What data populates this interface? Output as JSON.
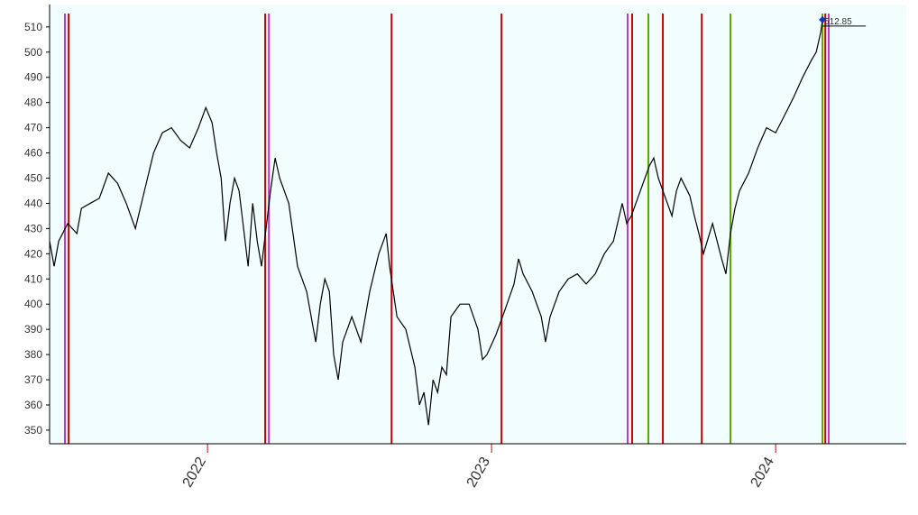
{
  "chart_data": {
    "type": "line",
    "xlim": [
      2021.444,
      2024.46
    ],
    "ylim": [
      344.6,
      518.9
    ],
    "xticks": [
      2022,
      2023,
      2024
    ],
    "yticks": [
      350,
      360,
      370,
      380,
      390,
      400,
      410,
      420,
      430,
      440,
      450,
      460,
      470,
      480,
      490,
      500,
      510
    ],
    "background": "#f2fdfd",
    "series": [
      {
        "color": "#000000",
        "x": [
          2021.444,
          2021.46,
          2021.476,
          2021.508,
          2021.54,
          2021.556,
          2021.587,
          2021.619,
          2021.651,
          2021.683,
          2021.714,
          2021.746,
          2021.778,
          2021.81,
          2021.841,
          2021.873,
          2021.905,
          2021.937,
          2021.968,
          2021.994,
          2022.016,
          2022.032,
          2022.048,
          2022.063,
          2022.079,
          2022.095,
          2022.111,
          2022.127,
          2022.143,
          2022.159,
          2022.175,
          2022.19,
          2022.206,
          2022.222,
          2022.238,
          2022.254,
          2022.286,
          2022.317,
          2022.349,
          2022.381,
          2022.397,
          2022.413,
          2022.429,
          2022.444,
          2022.46,
          2022.476,
          2022.508,
          2022.54,
          2022.571,
          2022.603,
          2022.629,
          2022.641,
          2022.667,
          2022.698,
          2022.73,
          2022.746,
          2022.762,
          2022.778,
          2022.794,
          2022.81,
          2022.825,
          2022.841,
          2022.857,
          2022.889,
          2022.921,
          2022.952,
          2022.968,
          2022.984,
          2023.016,
          2023.048,
          2023.079,
          2023.095,
          2023.111,
          2023.143,
          2023.175,
          2023.19,
          2023.206,
          2023.238,
          2023.27,
          2023.302,
          2023.333,
          2023.365,
          2023.397,
          2023.429,
          2023.46,
          2023.476,
          2023.492,
          2023.524,
          2023.556,
          2023.571,
          2023.587,
          2023.619,
          2023.635,
          2023.651,
          2023.667,
          2023.698,
          2023.714,
          2023.73,
          2023.746,
          2023.778,
          2023.81,
          2023.825,
          2023.841,
          2023.857,
          2023.873,
          2023.905,
          2023.937,
          2023.968,
          2024.0,
          2024.032,
          2024.063,
          2024.095,
          2024.127,
          2024.143,
          2024.159,
          2024.165
        ],
        "values": [
          425,
          415,
          425,
          432,
          428,
          438,
          440,
          442,
          452,
          448,
          440,
          430,
          445,
          460,
          468,
          470,
          465,
          462,
          470,
          478,
          472,
          460,
          450,
          425,
          440,
          450,
          445,
          430,
          415,
          440,
          425,
          415,
          430,
          445,
          458,
          450,
          440,
          415,
          405,
          385,
          400,
          410,
          405,
          380,
          370,
          385,
          395,
          385,
          405,
          420,
          428,
          415,
          395,
          390,
          375,
          360,
          365,
          352,
          370,
          365,
          375,
          372,
          395,
          400,
          400,
          390,
          378,
          380,
          388,
          398,
          408,
          418,
          412,
          405,
          395,
          385,
          395,
          405,
          410,
          412,
          408,
          412,
          420,
          425,
          440,
          432,
          435,
          445,
          455,
          458,
          450,
          440,
          435,
          445,
          450,
          443,
          435,
          428,
          420,
          432,
          418,
          412,
          428,
          438,
          445,
          452,
          462,
          470,
          468,
          475,
          482,
          490,
          497,
          500,
          508,
          512.85
        ]
      }
    ],
    "vlines": [
      {
        "x": 2021.498,
        "color": "#cc33cc"
      },
      {
        "x": 2021.511,
        "color": "#cc0000"
      },
      {
        "x": 2022.203,
        "color": "#cc0000"
      },
      {
        "x": 2022.216,
        "color": "#cc33cc"
      },
      {
        "x": 2022.648,
        "color": "#cc0000"
      },
      {
        "x": 2023.035,
        "color": "#cc0000"
      },
      {
        "x": 2023.479,
        "color": "#cc33cc"
      },
      {
        "x": 2023.495,
        "color": "#cc0000"
      },
      {
        "x": 2023.552,
        "color": "#55aa00"
      },
      {
        "x": 2023.603,
        "color": "#cc0000"
      },
      {
        "x": 2023.74,
        "color": "#cc0000"
      },
      {
        "x": 2023.841,
        "color": "#55aa00"
      },
      {
        "x": 2024.165,
        "color": "#55aa00"
      },
      {
        "x": 2024.175,
        "color": "#cc0000"
      },
      {
        "x": 2024.187,
        "color": "#cc33cc"
      }
    ]
  }
}
